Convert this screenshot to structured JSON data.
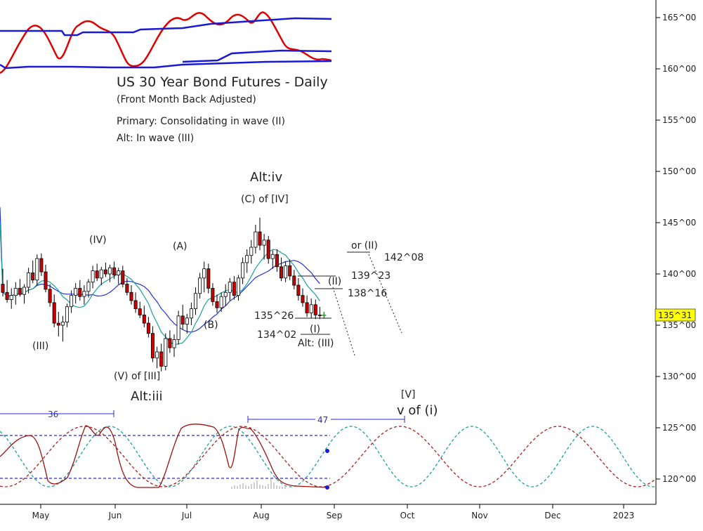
{
  "chart_data": {
    "type": "candlestick",
    "title": "US 30 Year Bond Futures - Daily",
    "subtitle": "(Front Month Back Adjusted)",
    "notes": [
      "Primary: Consolidating in wave (II)",
      "Alt: In wave (III)"
    ],
    "x_ticks": [
      "May",
      "Jun",
      "Jul",
      "Aug",
      "Sep",
      "Oct",
      "Nov",
      "Dec",
      "2023"
    ],
    "y_ticks": [
      "165^00",
      "160^00",
      "155^00",
      "150^00",
      "145^00",
      "140^00",
      "135^00",
      "130^00",
      "125^00",
      "120^00"
    ],
    "ylim": [
      118.5,
      167
    ],
    "price_badge": "135^31",
    "ohlc": [
      [
        139.0,
        140.5,
        137.8,
        138.2
      ],
      [
        138.2,
        139.4,
        137.2,
        137.5
      ],
      [
        137.5,
        138.6,
        136.6,
        137.9
      ],
      [
        137.9,
        139.2,
        137.0,
        138.6
      ],
      [
        138.6,
        139.5,
        137.8,
        138.0
      ],
      [
        138.0,
        139.0,
        137.1,
        138.7
      ],
      [
        138.7,
        140.6,
        138.1,
        140.1
      ],
      [
        140.1,
        141.3,
        139.1,
        139.4
      ],
      [
        139.4,
        141.9,
        138.9,
        141.5
      ],
      [
        141.5,
        142.0,
        139.8,
        140.2
      ],
      [
        140.2,
        140.9,
        138.2,
        138.5
      ],
      [
        138.5,
        139.0,
        136.8,
        137.2
      ],
      [
        137.2,
        138.0,
        134.8,
        135.2
      ],
      [
        135.2,
        136.3,
        133.9,
        135.0
      ],
      [
        135.0,
        135.9,
        133.4,
        135.3
      ],
      [
        135.3,
        137.1,
        134.8,
        136.8
      ],
      [
        136.8,
        138.4,
        136.2,
        137.9
      ],
      [
        137.9,
        139.1,
        137.1,
        138.6
      ],
      [
        138.6,
        139.4,
        137.4,
        137.8
      ],
      [
        137.8,
        138.9,
        137.0,
        138.3
      ],
      [
        138.3,
        139.5,
        137.7,
        139.2
      ],
      [
        139.2,
        140.8,
        138.6,
        140.3
      ],
      [
        140.3,
        141.0,
        139.3,
        139.6
      ],
      [
        139.6,
        140.7,
        138.9,
        140.4
      ],
      [
        140.4,
        141.1,
        139.7,
        140.0
      ],
      [
        140.0,
        140.9,
        139.2,
        140.6
      ],
      [
        140.6,
        141.2,
        139.5,
        139.9
      ],
      [
        139.9,
        140.6,
        139.0,
        140.3
      ],
      [
        140.3,
        140.8,
        138.7,
        139.0
      ],
      [
        139.0,
        139.6,
        137.9,
        138.2
      ],
      [
        138.2,
        138.9,
        137.0,
        137.4
      ],
      [
        137.4,
        138.2,
        136.2,
        136.6
      ],
      [
        136.6,
        137.3,
        135.7,
        136.0
      ],
      [
        136.0,
        136.9,
        134.8,
        135.2
      ],
      [
        135.2,
        135.8,
        133.8,
        134.2
      ],
      [
        134.2,
        134.9,
        131.4,
        131.8
      ],
      [
        131.8,
        132.9,
        130.8,
        132.4
      ],
      [
        132.4,
        133.2,
        130.5,
        131.0
      ],
      [
        131.0,
        134.2,
        130.6,
        133.7
      ],
      [
        133.7,
        134.5,
        132.3,
        132.8
      ],
      [
        132.8,
        134.1,
        131.9,
        133.6
      ],
      [
        133.6,
        136.4,
        133.1,
        135.9
      ],
      [
        135.9,
        137.0,
        134.6,
        135.1
      ],
      [
        135.1,
        136.1,
        134.2,
        135.7
      ],
      [
        135.7,
        137.2,
        135.0,
        136.6
      ],
      [
        136.6,
        138.7,
        136.0,
        138.1
      ],
      [
        138.1,
        140.1,
        137.6,
        139.6
      ],
      [
        139.6,
        141.2,
        138.2,
        140.5
      ],
      [
        140.5,
        141.0,
        138.1,
        138.6
      ],
      [
        138.6,
        139.1,
        136.9,
        137.3
      ],
      [
        137.3,
        138.0,
        136.2,
        136.7
      ],
      [
        136.7,
        138.2,
        136.3,
        137.8
      ],
      [
        137.8,
        139.0,
        136.9,
        138.2
      ],
      [
        138.2,
        139.6,
        137.4,
        139.2
      ],
      [
        139.2,
        139.8,
        137.5,
        137.9
      ],
      [
        137.9,
        139.9,
        137.4,
        139.6
      ],
      [
        139.6,
        141.6,
        139.0,
        141.1
      ],
      [
        141.1,
        142.4,
        140.1,
        141.8
      ],
      [
        141.8,
        143.3,
        141.0,
        142.6
      ],
      [
        142.6,
        144.8,
        142.0,
        144.1
      ],
      [
        144.1,
        145.5,
        142.3,
        142.8
      ],
      [
        142.8,
        143.9,
        141.4,
        143.3
      ],
      [
        143.3,
        143.7,
        141.0,
        141.5
      ],
      [
        141.5,
        142.3,
        140.5,
        141.9
      ],
      [
        141.9,
        142.4,
        140.2,
        140.7
      ],
      [
        140.7,
        141.6,
        139.3,
        139.6
      ],
      [
        139.6,
        141.2,
        139.2,
        140.8
      ],
      [
        140.8,
        141.4,
        139.4,
        139.8
      ],
      [
        139.8,
        140.4,
        138.5,
        138.9
      ],
      [
        138.9,
        139.6,
        137.4,
        137.9
      ],
      [
        137.9,
        138.6,
        136.8,
        137.2
      ],
      [
        137.2,
        137.9,
        135.8,
        136.2
      ],
      [
        136.2,
        137.6,
        135.7,
        137.0
      ],
      [
        137.0,
        137.5,
        135.6,
        136.0
      ],
      [
        136.0,
        136.8,
        135.6,
        135.97
      ]
    ],
    "cycle_labels": [
      "36",
      "47"
    ],
    "annotations": {
      "alt_iv": "Alt:iv",
      "c_of_iv": "(C) of [IV]",
      "iv": "(IV)",
      "a": "(A)",
      "iii": "(III)",
      "b": "(B)",
      "v_of_iii": "(V) of [III]",
      "alt_iii": "Alt:iii",
      "or_ii": "or (II)",
      "ii": "(II)",
      "i": "(I)",
      "alt_iii_wave": "Alt: (III)",
      "v_bracket": "[V]",
      "v_of_i": "v of (i)"
    },
    "levels": [
      "142^08",
      "139^23",
      "138^16",
      "135^26",
      "134^02"
    ],
    "colors": {
      "up": "#ffffff",
      "down": "#cc0000",
      "ma_fast": "#1aa0a0",
      "ma_slow": "#2233dd",
      "top_line": "#e00000",
      "bands": "#1a1ad6",
      "cycle_teal": "#1aa0a0",
      "cycle_red": "#b02020",
      "osc": "#a01010",
      "badge": "#ffff00"
    }
  }
}
